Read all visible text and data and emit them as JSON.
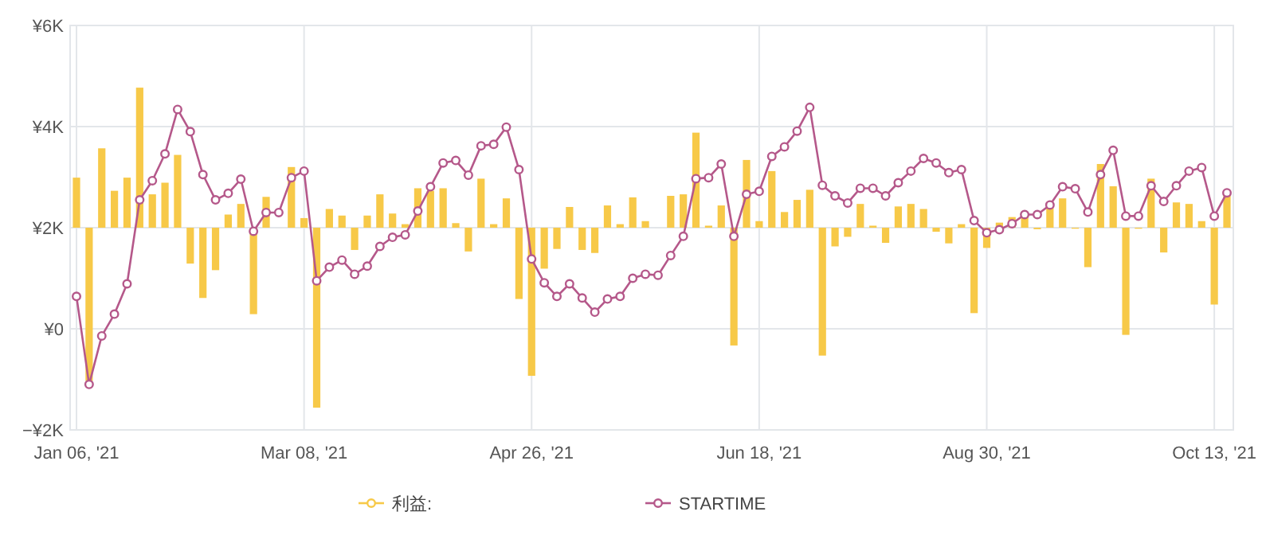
{
  "chart_data": {
    "type": "bar",
    "categories": [
      "Jan 06, '21",
      null,
      null,
      null,
      null,
      null,
      null,
      null,
      null,
      null,
      null,
      null,
      null,
      null,
      null,
      null,
      null,
      null,
      "Mar 08, '21",
      null,
      null,
      null,
      null,
      null,
      null,
      null,
      null,
      null,
      null,
      null,
      null,
      null,
      null,
      null,
      null,
      null,
      "Apr 26, '21",
      null,
      null,
      null,
      null,
      null,
      null,
      null,
      null,
      null,
      null,
      null,
      null,
      null,
      null,
      null,
      null,
      null,
      "Jun 18, '21",
      null,
      null,
      null,
      null,
      null,
      null,
      null,
      null,
      null,
      null,
      null,
      null,
      null,
      null,
      null,
      null,
      null,
      "Aug 30, '21",
      null,
      null,
      null,
      null,
      null,
      null,
      null,
      null,
      null,
      null,
      null,
      null,
      null,
      null,
      null,
      null,
      null,
      "Oct 13, '21",
      null
    ],
    "ylim": [
      -2000,
      6000
    ],
    "yticks": [
      {
        "value": -2000,
        "label": "−¥2K"
      },
      {
        "value": 0,
        "label": "¥0"
      },
      {
        "value": 2000,
        "label": "¥2K"
      },
      {
        "value": 4000,
        "label": "¥4K"
      },
      {
        "value": 6000,
        "label": "¥6K"
      }
    ],
    "grid": true,
    "legend": "bottom",
    "series": [
      {
        "name": "利益:",
        "color": "#f7c948",
        "base": [
          2000,
          2000,
          2000,
          2000,
          2000,
          2000,
          2000,
          2000,
          2000,
          2000,
          2000,
          2000,
          2000,
          2000,
          2000,
          2000,
          2000,
          2000,
          2000,
          2000,
          2000,
          2000,
          2000,
          2000,
          2000,
          2000,
          2000,
          2000,
          2000,
          2000,
          2000,
          2000,
          2000,
          2000,
          2000,
          2000,
          2000,
          2000,
          2000,
          2000,
          2000,
          2000,
          2000,
          2000,
          2000,
          2000,
          2000,
          2000,
          2000,
          2000,
          2000,
          2000,
          2000,
          2000,
          2000,
          2000,
          2000,
          2000,
          2000,
          2000,
          2000,
          2000,
          2000,
          2000,
          2000,
          2000,
          2000,
          2000,
          2000,
          2000,
          2000,
          2000,
          2000,
          2000,
          2000,
          2000,
          2000,
          2000,
          2000,
          2000,
          2000,
          2000,
          2000,
          2000,
          2000,
          2000,
          2000,
          2000,
          2000,
          2000,
          2000,
          2000
        ],
        "values": [
          990,
          -3030,
          1570,
          730,
          990,
          2770,
          660,
          890,
          1440,
          -710,
          -1390,
          -840,
          260,
          470,
          -1710,
          610,
          0,
          1200,
          190,
          -3560,
          370,
          240,
          -440,
          240,
          660,
          280,
          70,
          780,
          730,
          780,
          90,
          -470,
          970,
          70,
          580,
          -1410,
          -2930,
          -810,
          -420,
          410,
          -440,
          -500,
          440,
          70,
          600,
          130,
          0,
          630,
          660,
          1880,
          40,
          440,
          -2330,
          1340,
          130,
          1120,
          310,
          550,
          750,
          -2530,
          -370,
          -180,
          470,
          40,
          -300,
          420,
          470,
          370,
          -80,
          -310,
          70,
          -1690,
          -400,
          100,
          210,
          210,
          -30,
          390,
          580,
          -20,
          -780,
          1260,
          820,
          -2120,
          -20,
          970,
          -490,
          500,
          470,
          130,
          -1520,
          680
        ]
      },
      {
        "name": "STARTIME",
        "type": "line",
        "color": "#b5588a",
        "marker": "circle",
        "values": [
          640,
          -1100,
          -140,
          290,
          890,
          2550,
          2930,
          3460,
          4340,
          3900,
          3050,
          2550,
          2680,
          2960,
          1930,
          2300,
          2300,
          2990,
          3120,
          950,
          1220,
          1360,
          1080,
          1240,
          1630,
          1810,
          1860,
          2330,
          2810,
          3280,
          3330,
          3040,
          3620,
          3650,
          3990,
          3150,
          1380,
          910,
          640,
          890,
          610,
          330,
          590,
          640,
          1000,
          1080,
          1060,
          1450,
          1830,
          2970,
          2990,
          3260,
          1830,
          2660,
          2720,
          3410,
          3600,
          3910,
          4380,
          2840,
          2630,
          2490,
          2780,
          2780,
          2630,
          2890,
          3120,
          3370,
          3280,
          3090,
          3150,
          2140,
          1900,
          1960,
          2080,
          2260,
          2260,
          2450,
          2810,
          2770,
          2310,
          3050,
          3530,
          2230,
          2230,
          2830,
          2520,
          2830,
          3120,
          3190,
          2230,
          2690
        ]
      }
    ]
  }
}
